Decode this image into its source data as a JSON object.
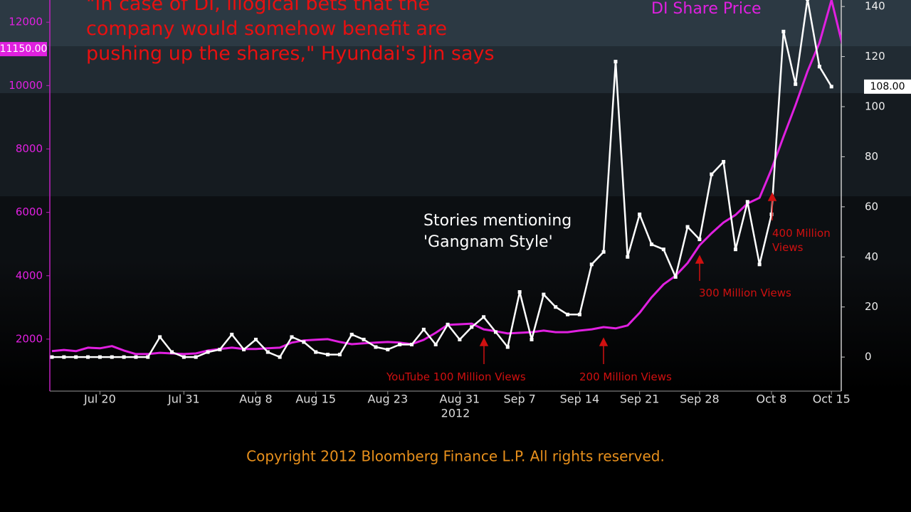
{
  "chart_data": {
    "type": "line",
    "annotations": {
      "quote": "\"In case of DI, illogical bets that the\ncompany would somehow benefit are\npushing up the shares,\" Hyundai's Jin says",
      "year": "2012",
      "events": [
        "YouTube 100 Million Views",
        "200 Million Views",
        "300 Million Views",
        "400 Million\nViews"
      ],
      "copyright": "Copyright 2012 Bloomberg Finance L.P. All rights reserved."
    },
    "categories": [
      null,
      null,
      null,
      null,
      "Jul 20",
      null,
      null,
      null,
      null,
      null,
      null,
      "Jul 31",
      null,
      null,
      null,
      null,
      null,
      "Aug 8",
      null,
      null,
      null,
      null,
      "Aug 15",
      null,
      null,
      null,
      null,
      null,
      "Aug 23",
      null,
      null,
      null,
      null,
      null,
      "Aug 31",
      null,
      null,
      null,
      null,
      "Sep 7",
      null,
      null,
      null,
      null,
      "Sep 14",
      null,
      null,
      null,
      null,
      "Sep 21",
      null,
      null,
      null,
      null,
      "Sep 28",
      null,
      null,
      null,
      null,
      null,
      "Oct 8",
      null,
      null,
      null,
      null,
      "Oct 15",
      null
    ],
    "series": [
      {
        "name": "DI Share Price",
        "color": "#e020e0",
        "axis": "y",
        "end_label": "11150.00",
        "values": [
          1620,
          1660,
          1620,
          1730,
          1710,
          1780,
          1640,
          1530,
          1530,
          1570,
          1550,
          1530,
          1550,
          1640,
          1690,
          1730,
          1690,
          1690,
          1710,
          1730,
          1890,
          1960,
          1980,
          2000,
          1910,
          1840,
          1870,
          1890,
          1910,
          1890,
          1840,
          1980,
          2200,
          2450,
          2470,
          2490,
          2310,
          2250,
          2180,
          2200,
          2220,
          2270,
          2220,
          2220,
          2270,
          2310,
          2380,
          2340,
          2430,
          2830,
          3320,
          3730,
          4000,
          4400,
          4960,
          5340,
          5680,
          5920,
          6280,
          6460,
          7360,
          8390,
          9380,
          10450,
          11350,
          12700,
          11150
        ]
      },
      {
        "name": "Stories mentioning\n'Gangnam Style'",
        "color": "#ffffff",
        "axis": "y2",
        "end_label": "108.00",
        "values": [
          0,
          0,
          0,
          0,
          0,
          0,
          0,
          0,
          0,
          8,
          2,
          0,
          0,
          2,
          3,
          9,
          3,
          7,
          2,
          0,
          8,
          6,
          2,
          1,
          1,
          9,
          7,
          4,
          3,
          5,
          5,
          11,
          5,
          13,
          7,
          12,
          16,
          10,
          4,
          26,
          7,
          25,
          20,
          17,
          17,
          37,
          42,
          118,
          40,
          57,
          45,
          43,
          32,
          52,
          47,
          73,
          78,
          43,
          62,
          37,
          57,
          130,
          109,
          143,
          116,
          108,
          null
        ]
      }
    ],
    "ylim": [
      360,
      12700
    ],
    "yticks": [
      2000,
      4000,
      6000,
      8000,
      10000,
      12000
    ],
    "y2lim": [
      -13.6,
      142.6
    ],
    "y2ticks": [
      0,
      20,
      40,
      60,
      80,
      100,
      120,
      140
    ]
  }
}
